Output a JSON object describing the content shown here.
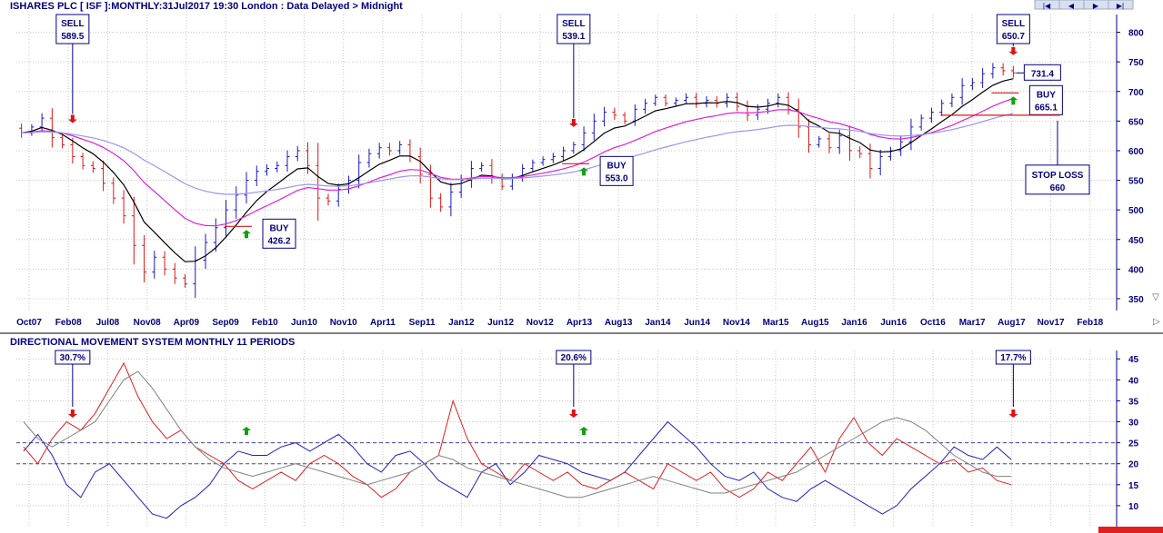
{
  "header": {
    "title": "ISHARES PLC [ ISF ]:MONTHLY:31Jul2017 19:30 London : Data Delayed > Midnight",
    "nav_buttons": [
      "|◀",
      "◀",
      "▶",
      "▶|"
    ]
  },
  "colors": {
    "up": "#1818c0",
    "down": "#d81818",
    "ma_short": "#000000",
    "ma_mid": "#e020d8",
    "ma_long": "#9898f0",
    "label": "#000080",
    "grid": "#c8c8c8",
    "buy_arrow": "#10a010",
    "sell_arrow": "#e01010",
    "pdi": "#2020c0",
    "mdi": "#e02020",
    "adx": "#808080"
  },
  "chart_data": [
    {
      "type": "ohlc",
      "title": "ISHARES PLC [ ISF ]:MONTHLY:31Jul2017 19:30 London : Data Delayed > Midnight",
      "ylim": [
        330,
        830
      ],
      "yticks": [
        350,
        400,
        450,
        500,
        550,
        600,
        650,
        700,
        750,
        800
      ],
      "xticks": [
        "Oct07",
        "Feb08",
        "Jul08",
        "Nov08",
        "Apr09",
        "Sep09",
        "Feb10",
        "Jun10",
        "Nov10",
        "Apr11",
        "Sep11",
        "Jan12",
        "Jun12",
        "Nov12",
        "Apr13",
        "Aug13",
        "Jan14",
        "Jun14",
        "Nov14",
        "Mar15",
        "Aug15",
        "Jan16",
        "Jun16",
        "Oct16",
        "Mar17",
        "Aug17",
        "Nov17",
        "Feb18"
      ],
      "grid": true,
      "closes": [
        630,
        640,
        655,
        622,
        610,
        590,
        575,
        570,
        545,
        520,
        490,
        440,
        395,
        420,
        400,
        385,
        375,
        415,
        445,
        470,
        500,
        525,
        550,
        565,
        570,
        575,
        590,
        600,
        575,
        520,
        515,
        535,
        550,
        580,
        595,
        605,
        600,
        610,
        590,
        560,
        520,
        505,
        530,
        550,
        570,
        575,
        555,
        540,
        555,
        570,
        580,
        585,
        590,
        600,
        610,
        630,
        650,
        665,
        660,
        650,
        670,
        680,
        690,
        680,
        685,
        690,
        680,
        685,
        680,
        690,
        675,
        660,
        670,
        680,
        690,
        670,
        640,
        610,
        620,
        605,
        625,
        600,
        595,
        570,
        590,
        600,
        615,
        640,
        655,
        665,
        680,
        690,
        710,
        715,
        730,
        740,
        735,
        731.4
      ],
      "moving_averages": [
        {
          "period": "short",
          "color_key": "ma_short"
        },
        {
          "period": "mid",
          "color_key": "ma_mid"
        },
        {
          "period": "long",
          "color_key": "ma_long"
        }
      ],
      "signals": [
        {
          "kind": "SELL",
          "value": "589.5",
          "index": 5
        },
        {
          "kind": "BUY",
          "value": "426.2",
          "index": 22
        },
        {
          "kind": "SELL",
          "value": "539.1",
          "index": 54
        },
        {
          "kind": "BUY",
          "value": "553.0",
          "index": 55
        },
        {
          "kind": "SELL",
          "value": "650.7",
          "index": 97
        },
        {
          "kind": "BUY",
          "value": "665.1",
          "index": 118
        }
      ],
      "last_value": "731.4",
      "stop_loss": {
        "label": "STOP LOSS",
        "value": "660",
        "level": 660
      }
    },
    {
      "type": "line",
      "title": "DIRECTIONAL MOVEMENT SYSTEM MONTHLY 11 PERIODS",
      "ylim": [
        5,
        47
      ],
      "yticks": [
        10,
        15,
        20,
        25,
        30,
        35,
        40,
        45
      ],
      "reference_lines": [
        20,
        25
      ],
      "series": [
        {
          "color_key": "pdi",
          "values": [
            23,
            27,
            22,
            15,
            12,
            18,
            20,
            16,
            12,
            8,
            7,
            10,
            12,
            15,
            20,
            23,
            22,
            22,
            24,
            25,
            23,
            25,
            27,
            24,
            20,
            18,
            22,
            23,
            20,
            16,
            14,
            12,
            18,
            20,
            15,
            18,
            22,
            21,
            20,
            18,
            17,
            16,
            18,
            22,
            26,
            30,
            27,
            24,
            20,
            17,
            16,
            18,
            14,
            12,
            11,
            14,
            16,
            14,
            12,
            10,
            8,
            10,
            14,
            17,
            20,
            24,
            22,
            21,
            24,
            21
          ]
        },
        {
          "color_key": "mdi",
          "values": [
            24,
            20,
            26,
            30,
            28,
            32,
            38,
            44,
            36,
            30,
            26,
            28,
            24,
            22,
            20,
            16,
            14,
            16,
            18,
            16,
            20,
            22,
            20,
            17,
            15,
            12,
            14,
            18,
            20,
            22,
            35,
            26,
            20,
            18,
            16,
            20,
            18,
            16,
            18,
            15,
            14,
            16,
            18,
            16,
            14,
            20,
            18,
            16,
            18,
            14,
            12,
            14,
            18,
            16,
            20,
            24,
            18,
            26,
            31,
            25,
            22,
            26,
            24,
            22,
            20,
            21,
            18,
            19,
            16,
            15
          ]
        },
        {
          "color_key": "adx",
          "values": [
            30,
            26,
            24,
            26,
            28,
            30,
            35,
            40,
            42,
            38,
            33,
            28,
            24,
            21,
            19,
            18,
            17,
            18,
            19,
            20,
            19,
            18,
            17,
            16,
            15,
            16,
            17,
            18,
            20,
            22,
            21,
            19,
            18,
            17,
            16,
            15,
            14,
            13,
            12,
            12,
            13,
            14,
            15,
            16,
            17,
            16,
            15,
            14,
            13,
            13,
            14,
            15,
            16,
            17,
            18,
            20,
            22,
            24,
            26,
            28,
            30,
            31,
            30,
            28,
            25,
            22,
            20,
            18,
            17,
            17
          ]
        }
      ],
      "signal_labels": [
        {
          "value": "30.7%"
        },
        {
          "value": "20.6%"
        },
        {
          "value": "17.7%"
        }
      ]
    }
  ]
}
